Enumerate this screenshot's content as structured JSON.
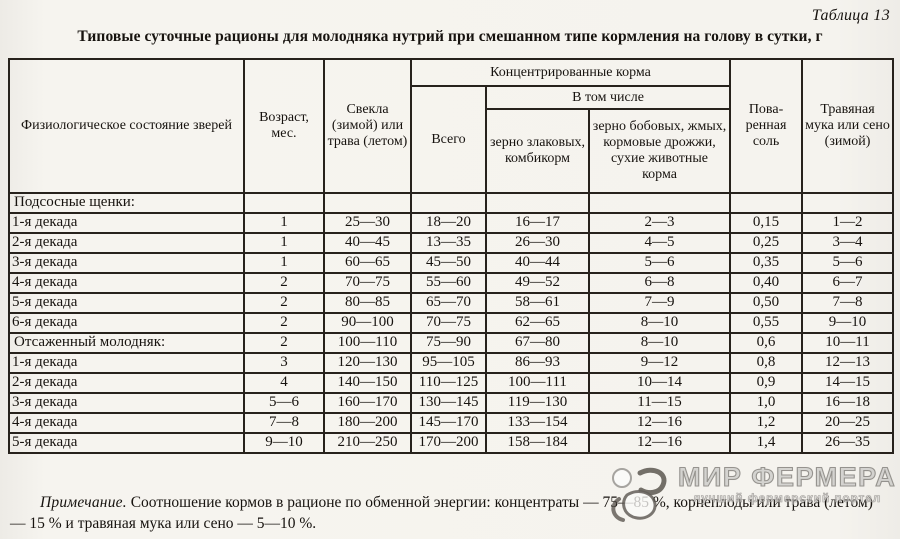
{
  "page": {
    "table_label": "Таблица 13",
    "title": "Типовые суточные рационы для молодняка нутрий при смешанном типе кормления на голову в сутки, г"
  },
  "table": {
    "header": {
      "col_physio": "Физиологическое состояние зверей",
      "col_age": "Возраст, мес.",
      "col_beet": "Свекла (зимой) или трава (летом)",
      "group_concentrated": "Концентрированные корма",
      "col_total": "Всего",
      "group_including": "В том числе",
      "col_cereal": "зерно злаковых, комбикорм",
      "col_legume": "зерно бобовых, жмых, кормовые дрожжи, сухие животные корма",
      "col_salt": "Пова-ренная соль",
      "col_hay": "Травяная мука или сено (зимой)"
    },
    "rows": [
      {
        "label": "Подсосные щенки:",
        "section": true,
        "cells": [
          "",
          "",
          "",
          "",
          "",
          "",
          ""
        ]
      },
      {
        "label": "1-я декада",
        "section": false,
        "cells": [
          "1",
          "25—30",
          "18—20",
          "16—17",
          "2—3",
          "0,15",
          "1—2"
        ]
      },
      {
        "label": "2-я декада",
        "section": false,
        "cells": [
          "1",
          "40—45",
          "13—35",
          "26—30",
          "4—5",
          "0,25",
          "3—4"
        ]
      },
      {
        "label": "3-я декада",
        "section": false,
        "cells": [
          "1",
          "60—65",
          "45—50",
          "40—44",
          "5—6",
          "0,35",
          "5—6"
        ]
      },
      {
        "label": "4-я декада",
        "section": false,
        "cells": [
          "2",
          "70—75",
          "55—60",
          "49—52",
          "6—8",
          "0,40",
          "6—7"
        ]
      },
      {
        "label": "5-я декада",
        "section": false,
        "cells": [
          "2",
          "80—85",
          "65—70",
          "58—61",
          "7—9",
          "0,50",
          "7—8"
        ]
      },
      {
        "label": "6-я декада",
        "section": false,
        "cells": [
          "2",
          "90—100",
          "70—75",
          "62—65",
          "8—10",
          "0,55",
          "9—10"
        ]
      },
      {
        "label": "Отсаженный молодняк:",
        "section": true,
        "cells": [
          "2",
          "100—110",
          "75—90",
          "67—80",
          "8—10",
          "0,6",
          "10—11"
        ]
      },
      {
        "label": "1-я декада",
        "section": false,
        "cells": [
          "3",
          "120—130",
          "95—105",
          "86—93",
          "9—12",
          "0,8",
          "12—13"
        ]
      },
      {
        "label": "2-я декада",
        "section": false,
        "cells": [
          "4",
          "140—150",
          "110—125",
          "100—111",
          "10—14",
          "0,9",
          "14—15"
        ]
      },
      {
        "label": "3-я декада",
        "section": false,
        "cells": [
          "5—6",
          "160—170",
          "130—145",
          "119—130",
          "11—15",
          "1,0",
          "16—18"
        ]
      },
      {
        "label": "4-я декада",
        "section": false,
        "cells": [
          "7—8",
          "180—200",
          "145—170",
          "133—154",
          "12—16",
          "1,2",
          "20—25"
        ]
      },
      {
        "label": "5-я декада",
        "section": false,
        "cells": [
          "9—10",
          "210—250",
          "170—200",
          "158—184",
          "12—16",
          "1,4",
          "26—35"
        ]
      }
    ]
  },
  "note": {
    "label": "Примечание.",
    "text": "Соотношение кормов в рационе по обменной энергии: концентраты — 75—85 %, корнеплоды или трава (летом) — 15 % и травяная мука или сено — 5—10 %."
  },
  "watermark": {
    "title": "МИР ФЕРМЕРА",
    "subtitle": "лучший фермерский портал"
  }
}
